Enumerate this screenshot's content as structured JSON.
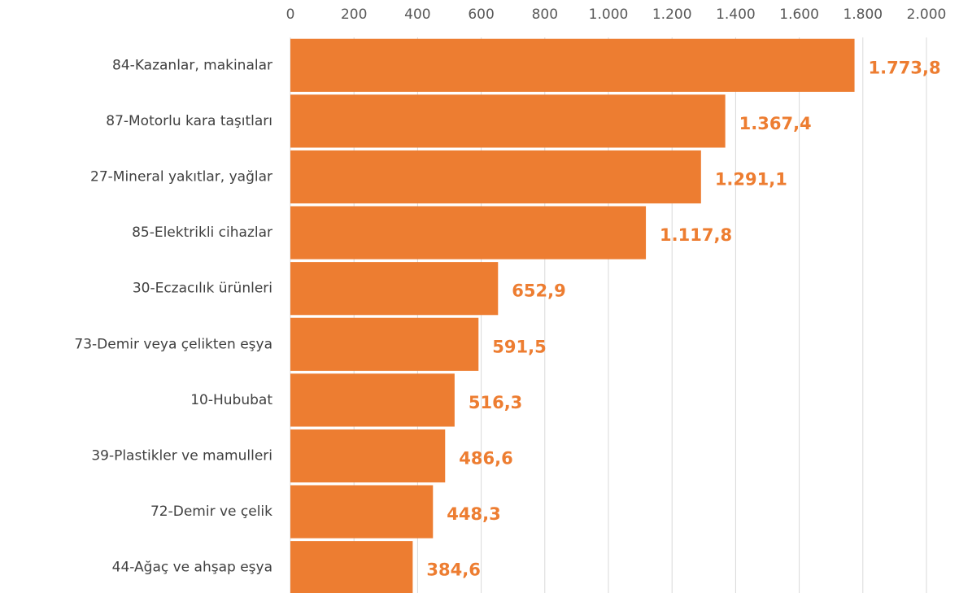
{
  "chart_data": {
    "type": "barh",
    "categories": [
      "84-Kazanlar, makinalar",
      "87-Motorlu kara taşıtları",
      "27-Mineral yakıtlar, yağlar",
      "85-Elektrikli cihazlar",
      "30-Eczacılık ürünleri",
      "73-Demir veya çelikten eşya",
      "10-Hububat",
      "39-Plastikler ve mamulleri",
      "72-Demir ve çelik",
      "44-Ağaç ve ahşap eşya"
    ],
    "values": [
      1773.8,
      1367.4,
      1291.1,
      1117.8,
      652.9,
      591.5,
      516.3,
      486.6,
      448.3,
      384.6
    ],
    "value_labels": [
      "1.773,8",
      "1.367,4",
      "1.291,1",
      "1.117,8",
      "652,9",
      "591,5",
      "516,3",
      "486,6",
      "448,3",
      "384,6"
    ],
    "color": "#ed7d31",
    "xlim": [
      0,
      2000
    ],
    "xticks": [
      0,
      200,
      400,
      600,
      800,
      {
        "value": 1000,
        "label": "1.000"
      },
      {
        "value": 1200,
        "label": "1.200"
      },
      {
        "value": 1400,
        "label": "1.400"
      },
      {
        "value": 1600,
        "label": "1.600"
      },
      {
        "value": 1800,
        "label": "1.800"
      },
      {
        "value": 2000,
        "label": "2.000"
      }
    ],
    "grid": true
  }
}
